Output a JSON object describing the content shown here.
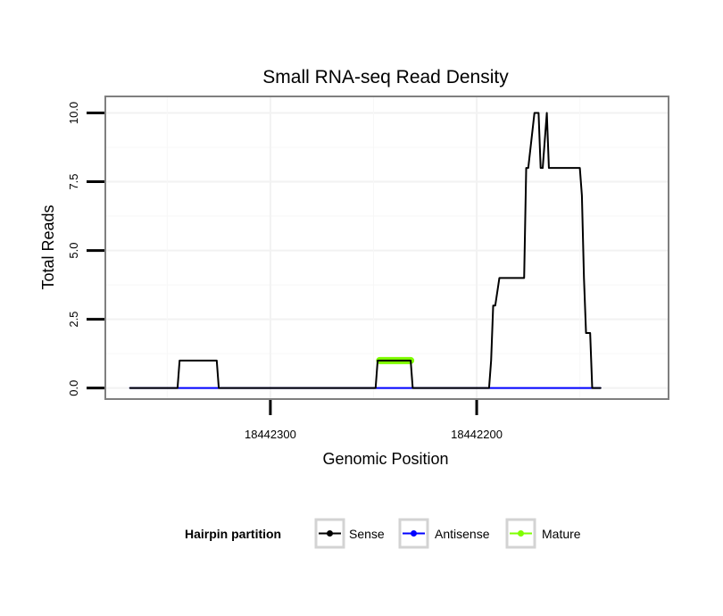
{
  "chart_data": {
    "type": "line",
    "title": "Small RNA-seq Read Density",
    "xlabel": "Genomic Position",
    "ylabel": "Total Reads",
    "xlim": [
      18442380,
      18442107
    ],
    "ylim": [
      -0.4,
      10.6
    ],
    "x_reversed": true,
    "x_ticks": [
      {
        "value": 18442300,
        "label": "18442300"
      },
      {
        "value": 18442200,
        "label": "18442200"
      }
    ],
    "y_ticks": [
      {
        "value": 0,
        "label": "0.0"
      },
      {
        "value": 2.5,
        "label": "2.5"
      },
      {
        "value": 5,
        "label": "5.0"
      },
      {
        "value": 7.5,
        "label": "7.5"
      },
      {
        "value": 10,
        "label": "10.0"
      }
    ],
    "legend": {
      "title": "Hairpin partition",
      "position": "bottom"
    },
    "series": [
      {
        "name": "Sense",
        "color": "#000000",
        "width": 2,
        "x": [
          18442368,
          18442345,
          18442344,
          18442326,
          18442325,
          18442249,
          18442248,
          18442232,
          18442231,
          18442194,
          18442193,
          18442192,
          18442191,
          18442189,
          18442177,
          18442176,
          18442175,
          18442172,
          18442170,
          18442169,
          18442168,
          18442166,
          18442165,
          18442163,
          18442150,
          18442149,
          18442148,
          18442147,
          18442145,
          18442144,
          18442140
        ],
        "y": [
          0,
          0,
          1,
          1,
          0,
          0,
          1,
          1,
          0,
          0,
          1,
          3,
          3,
          4,
          4,
          8,
          8,
          10,
          10,
          8,
          8,
          10,
          8,
          8,
          8,
          7,
          4,
          2,
          2,
          0,
          0
        ]
      },
      {
        "name": "Antisense",
        "color": "#0000ff",
        "width": 2,
        "x": [
          18442368,
          18442140
        ],
        "y": [
          0,
          0
        ]
      },
      {
        "name": "Mature",
        "color": "#7fff00",
        "width": 8,
        "x": [
          18442247,
          18442232
        ],
        "y": [
          1,
          1
        ]
      }
    ]
  }
}
